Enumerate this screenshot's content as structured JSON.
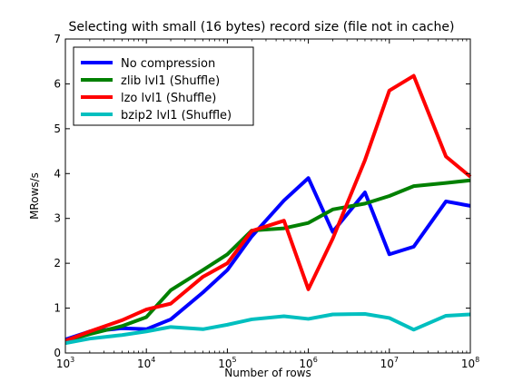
{
  "chart_data": {
    "type": "line",
    "title": "Selecting with small (16 bytes) record size (file not in cache)",
    "xlabel": "Number of rows",
    "ylabel": "MRows/s",
    "xscale": "log",
    "xlim": [
      1000,
      100000000
    ],
    "ylim": [
      0,
      7
    ],
    "x_ticks": [
      {
        "base": "10",
        "exp": "3",
        "value": 1000
      },
      {
        "base": "10",
        "exp": "4",
        "value": 10000
      },
      {
        "base": "10",
        "exp": "5",
        "value": 100000
      },
      {
        "base": "10",
        "exp": "6",
        "value": 1000000
      },
      {
        "base": "10",
        "exp": "7",
        "value": 10000000
      },
      {
        "base": "10",
        "exp": "8",
        "value": 100000000
      }
    ],
    "y_ticks": [
      "0",
      "1",
      "2",
      "3",
      "4",
      "5",
      "6",
      "7"
    ],
    "grid": false,
    "legend_position": "upper-left",
    "x": [
      1000,
      2000,
      5000,
      10000,
      20000,
      50000,
      100000,
      200000,
      500000,
      1000000,
      2000000,
      5000000,
      10000000,
      20000000,
      50000000,
      100000000
    ],
    "series": [
      {
        "name": "No compression",
        "color": "#0000ff",
        "values": [
          0.3,
          0.48,
          0.55,
          0.53,
          0.75,
          1.35,
          1.85,
          2.6,
          3.4,
          3.9,
          2.7,
          3.58,
          2.2,
          2.37,
          3.38,
          3.28
        ]
      },
      {
        "name": "zlib lvl1 (Shuffle)",
        "color": "#008000",
        "values": [
          0.27,
          0.42,
          0.6,
          0.8,
          1.4,
          1.85,
          2.2,
          2.73,
          2.78,
          2.9,
          3.2,
          3.33,
          3.5,
          3.72,
          3.79,
          3.85
        ]
      },
      {
        "name": "lzo lvl1 (Shuffle)",
        "color": "#ff0000",
        "values": [
          0.27,
          0.48,
          0.73,
          0.97,
          1.1,
          1.7,
          2.0,
          2.72,
          2.95,
          1.42,
          2.55,
          4.3,
          5.85,
          6.18,
          4.38,
          3.93
        ]
      },
      {
        "name": "bzip2 lvl1 (Shuffle)",
        "color": "#00bfbf",
        "values": [
          0.22,
          0.32,
          0.4,
          0.48,
          0.58,
          0.53,
          0.63,
          0.75,
          0.82,
          0.76,
          0.86,
          0.87,
          0.78,
          0.52,
          0.83,
          0.86
        ]
      }
    ]
  }
}
